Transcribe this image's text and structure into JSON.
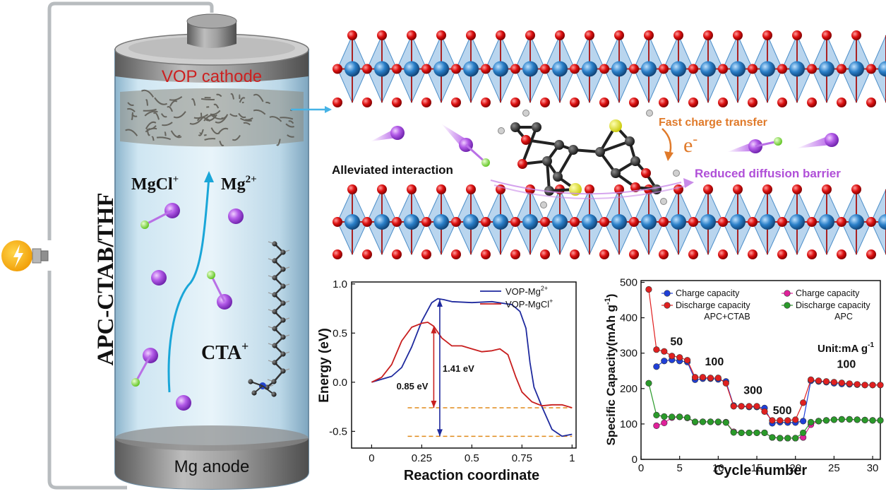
{
  "battery": {
    "cathode_label": "VOP cathode",
    "anode_label": "Mg anode",
    "electrolyte_label": "APC-CTAB/THF",
    "ion_mgcl": "MgCl",
    "ion_mgcl_charge": "+",
    "ion_mg": "Mg",
    "ion_mg_charge": "2+",
    "cta": "CTA",
    "cta_charge": "+"
  },
  "mechanism": {
    "alleviated": "Alleviated interaction",
    "fast_charge": "Fast charge transfer",
    "electron": "e",
    "electron_charge": "-",
    "reduced_barrier": "Reduced diffusion barrier"
  },
  "colors": {
    "cathode_text": "#cc2020",
    "fast_charge": "#e07a2a",
    "reduced_barrier": "#b04fd8",
    "oxygen": "#dd1111",
    "vanadium": "#2a7fc8",
    "mg_ion": "#9b3fd8",
    "cl_atom": "#7cdc2a",
    "arrow_blue": "#1aa6d8"
  },
  "chart_data": [
    {
      "type": "line",
      "xlabel": "Reaction coordinate",
      "ylabel": "Energy (eV)",
      "xlim": [
        -0.1,
        1.02
      ],
      "ylim": [
        -0.67,
        1.02
      ],
      "xticks": [
        "0",
        "0.25",
        "0.5",
        "0.75",
        "1"
      ],
      "yticks": [
        "-0.5",
        "0.0",
        "0.5",
        "1.0"
      ],
      "legend_position": "top-right",
      "series": [
        {
          "name": "VOP-Mg",
          "name_sup": "2+",
          "color": "#1f2a9e",
          "x": [
            0.0,
            0.1,
            0.15,
            0.2,
            0.25,
            0.3,
            0.33,
            0.36,
            0.4,
            0.5,
            0.6,
            0.7,
            0.74,
            0.77,
            0.79,
            0.81,
            0.85,
            0.9,
            0.95,
            1.0
          ],
          "y": [
            0.0,
            0.06,
            0.15,
            0.36,
            0.62,
            0.81,
            0.85,
            0.84,
            0.82,
            0.81,
            0.82,
            0.79,
            0.72,
            0.55,
            0.2,
            -0.05,
            -0.25,
            -0.48,
            -0.55,
            -0.53
          ]
        },
        {
          "name": "VOP-MgCl",
          "name_sup": "+",
          "color": "#c81e1e",
          "x": [
            0.0,
            0.05,
            0.1,
            0.15,
            0.2,
            0.25,
            0.28,
            0.31,
            0.35,
            0.4,
            0.45,
            0.5,
            0.55,
            0.6,
            0.64,
            0.68,
            0.72,
            0.75,
            0.8,
            0.85,
            0.9,
            0.95,
            1.0
          ],
          "y": [
            0.0,
            0.05,
            0.18,
            0.42,
            0.56,
            0.6,
            0.61,
            0.57,
            0.45,
            0.37,
            0.37,
            0.34,
            0.31,
            0.32,
            0.34,
            0.28,
            0.05,
            -0.1,
            -0.2,
            -0.24,
            -0.23,
            -0.23,
            -0.26
          ]
        }
      ],
      "annotations": [
        {
          "text": "0.85 eV",
          "arrow_x": 0.31,
          "from": -0.26,
          "to": 0.57,
          "color": "#c81e1e"
        },
        {
          "text": "1.41 eV",
          "arrow_x": 0.34,
          "from": -0.55,
          "to": 0.84,
          "color": "#1f2a9e"
        }
      ],
      "reference_levels": [
        -0.26,
        -0.55
      ]
    },
    {
      "type": "scatter",
      "xlabel": "Cycle number",
      "ylabel": "Specific Capacity(mAh g",
      "ylabel_sup": "-1",
      "ylabel_close": ")",
      "xlim": [
        0,
        31
      ],
      "ylim": [
        0,
        505
      ],
      "xticks": [
        "0",
        "5",
        "10",
        "15",
        "20",
        "25",
        "30"
      ],
      "yticks": [
        "0",
        "100",
        "200",
        "300",
        "400",
        "500"
      ],
      "unit_label": "Unit:mA g",
      "unit_sup": "-1",
      "rate_labels": [
        {
          "text": "50",
          "x": 4.6,
          "y": 322
        },
        {
          "text": "100",
          "x": 9.5,
          "y": 265
        },
        {
          "text": "300",
          "x": 14.5,
          "y": 185
        },
        {
          "text": "500",
          "x": 18.3,
          "y": 128
        },
        {
          "text": "100",
          "x": 26.6,
          "y": 258
        }
      ],
      "legend": {
        "apc_ctab_title": "APC+CTAB",
        "apc_title": "APC",
        "entries": [
          {
            "label": "Charge capacity",
            "color": "#1f3fd8"
          },
          {
            "label": "Discharge capacity",
            "color": "#e02020"
          },
          {
            "label": "Charge capacity",
            "color": "#e0209a"
          },
          {
            "label": "Discharge capacity",
            "color": "#2a9a2a"
          }
        ]
      },
      "series": [
        {
          "name": "APC+CTAB Charge capacity",
          "color": "#1f3fd8",
          "x": [
            2,
            3,
            4,
            5,
            6,
            7,
            8,
            9,
            10,
            11,
            12,
            13,
            14,
            15,
            16,
            17,
            18,
            19,
            20,
            21,
            22,
            23,
            24,
            25,
            26,
            27,
            28,
            29,
            30,
            31
          ],
          "y": [
            262,
            278,
            281,
            278,
            275,
            225,
            228,
            228,
            226,
            220,
            152,
            150,
            148,
            148,
            145,
            102,
            105,
            104,
            104,
            108,
            222,
            220,
            218,
            215,
            213,
            212,
            211,
            210,
            210,
            210
          ]
        },
        {
          "name": "APC+CTAB Discharge capacity",
          "color": "#e02020",
          "x": [
            1,
            2,
            3,
            4,
            5,
            6,
            7,
            8,
            9,
            10,
            11,
            12,
            13,
            14,
            15,
            16,
            17,
            18,
            19,
            20,
            21,
            22,
            23,
            24,
            25,
            26,
            27,
            28,
            29,
            30,
            31
          ],
          "y": [
            480,
            310,
            305,
            292,
            288,
            280,
            232,
            232,
            230,
            230,
            215,
            150,
            150,
            150,
            150,
            135,
            110,
            110,
            110,
            112,
            160,
            225,
            222,
            220,
            218,
            216,
            214,
            212,
            210,
            210,
            210
          ]
        },
        {
          "name": "APC Charge capacity",
          "color": "#e0209a",
          "x": [
            2,
            3,
            4,
            5,
            6,
            7,
            8,
            9,
            10,
            11,
            12,
            13,
            14,
            15,
            16,
            17,
            18,
            19,
            20,
            21,
            22,
            23,
            24,
            25,
            26,
            27,
            28,
            29,
            30,
            31
          ],
          "y": [
            95,
            103,
            118,
            120,
            117,
            105,
            106,
            106,
            105,
            105,
            78,
            75,
            75,
            75,
            75,
            62,
            60,
            60,
            60,
            62,
            98,
            108,
            110,
            112,
            113,
            113,
            112,
            111,
            110,
            110
          ]
        },
        {
          "name": "APC Discharge capacity",
          "color": "#2a9a2a",
          "x": [
            1,
            2,
            3,
            4,
            5,
            6,
            7,
            8,
            9,
            10,
            11,
            12,
            13,
            14,
            15,
            16,
            17,
            18,
            19,
            20,
            21,
            22,
            23,
            24,
            25,
            26,
            27,
            28,
            29,
            30,
            31
          ],
          "y": [
            215,
            125,
            121,
            120,
            120,
            118,
            106,
            106,
            106,
            106,
            104,
            76,
            75,
            75,
            75,
            75,
            62,
            60,
            60,
            60,
            75,
            105,
            108,
            110,
            112,
            113,
            113,
            112,
            111,
            110,
            110
          ]
        }
      ]
    }
  ]
}
